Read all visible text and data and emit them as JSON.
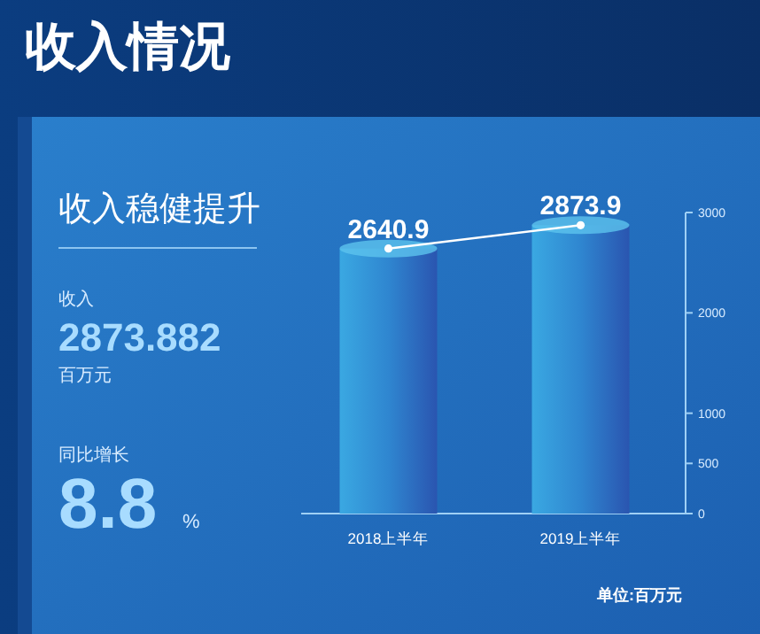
{
  "chart_data": {
    "type": "bar",
    "title": "收入情况",
    "subtitle": "收入稳健提升",
    "categories": [
      "2018上半年",
      "2019上半年"
    ],
    "series": [
      {
        "color": "#2f86d0",
        "values": [
          2640.9,
          2873.9
        ],
        "value_labels": [
          "2640.9",
          "2873.9"
        ]
      },
      {
        "type": "line",
        "color": "#ffffff",
        "marker": "circle",
        "values": [
          2640.9,
          2873.9
        ]
      }
    ],
    "ylim": [
      0,
      3000
    ],
    "yticks": [
      0,
      500,
      1000,
      2000,
      3000
    ],
    "annotations": [
      "收入",
      "2873.882",
      "百万元",
      "同比增长",
      "8.8",
      "%",
      "单位:百万元"
    ]
  }
}
